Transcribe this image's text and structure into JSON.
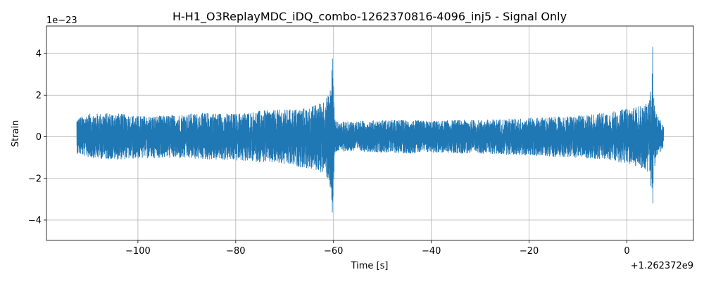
{
  "chart_data": {
    "type": "line",
    "title": "H-H1_O3ReplayMDC_iDQ_combo-1262370816-4096_inj5 - Signal Only",
    "xlabel": "Time [s]",
    "ylabel": "Strain",
    "x_offset_label": "+1.262372e9",
    "y_scale_label": "1e−23",
    "xlim": [
      -118.7,
      13.6
    ],
    "ylim": [
      -4.98,
      5.32
    ],
    "x_ticks": [
      -100,
      -80,
      -60,
      -40,
      -20,
      0
    ],
    "x_tick_labels": [
      "−100",
      "−80",
      "−60",
      "−40",
      "−20",
      "0"
    ],
    "y_ticks": [
      -4,
      -2,
      0,
      2,
      4
    ],
    "y_tick_labels": [
      "−4",
      "−2",
      "0",
      "2",
      "4"
    ],
    "grid": true,
    "line_color": "#1f77b4",
    "series": [
      {
        "x": [
          -112.5,
          -110,
          -105,
          -100,
          -95,
          -90,
          -85,
          -80,
          -75,
          -70,
          -67,
          -65,
          -63,
          -62,
          -61,
          -60.5,
          -60.2,
          -60.0,
          -59.8,
          -59.5,
          -59,
          -55,
          -50,
          -45,
          -40,
          -35,
          -30,
          -25,
          -20,
          -15,
          -10,
          -5,
          -2,
          0,
          2,
          3.5,
          4.5,
          5.0,
          5.3,
          5.5,
          5.8,
          6.5,
          7.5
        ],
        "y_upper": [
          0.9,
          1.1,
          1.15,
          1.0,
          1.0,
          1.1,
          1.15,
          1.1,
          1.25,
          1.3,
          1.35,
          1.4,
          1.6,
          1.8,
          2.0,
          2.5,
          4.3,
          2.8,
          0.9,
          0.75,
          0.7,
          0.75,
          0.8,
          0.8,
          0.75,
          0.8,
          0.8,
          0.85,
          0.9,
          0.95,
          1.0,
          1.15,
          1.25,
          1.35,
          1.45,
          1.5,
          1.7,
          2.5,
          4.9,
          1.9,
          1.3,
          0.9,
          0.5
        ],
        "y_lower": [
          -0.8,
          -1.0,
          -1.1,
          -1.05,
          -1.0,
          -1.05,
          -1.1,
          -1.15,
          -1.2,
          -1.35,
          -1.45,
          -1.55,
          -1.65,
          -1.8,
          -2.1,
          -2.7,
          -4.5,
          -2.9,
          -0.9,
          -0.75,
          -0.7,
          -0.7,
          -0.75,
          -0.8,
          -0.75,
          -0.8,
          -0.8,
          -0.85,
          -0.9,
          -0.95,
          -1.0,
          -1.1,
          -1.2,
          -1.3,
          -1.45,
          -1.55,
          -1.75,
          -2.5,
          -3.9,
          -1.8,
          -1.2,
          -0.85,
          -0.5
        ]
      }
    ]
  }
}
